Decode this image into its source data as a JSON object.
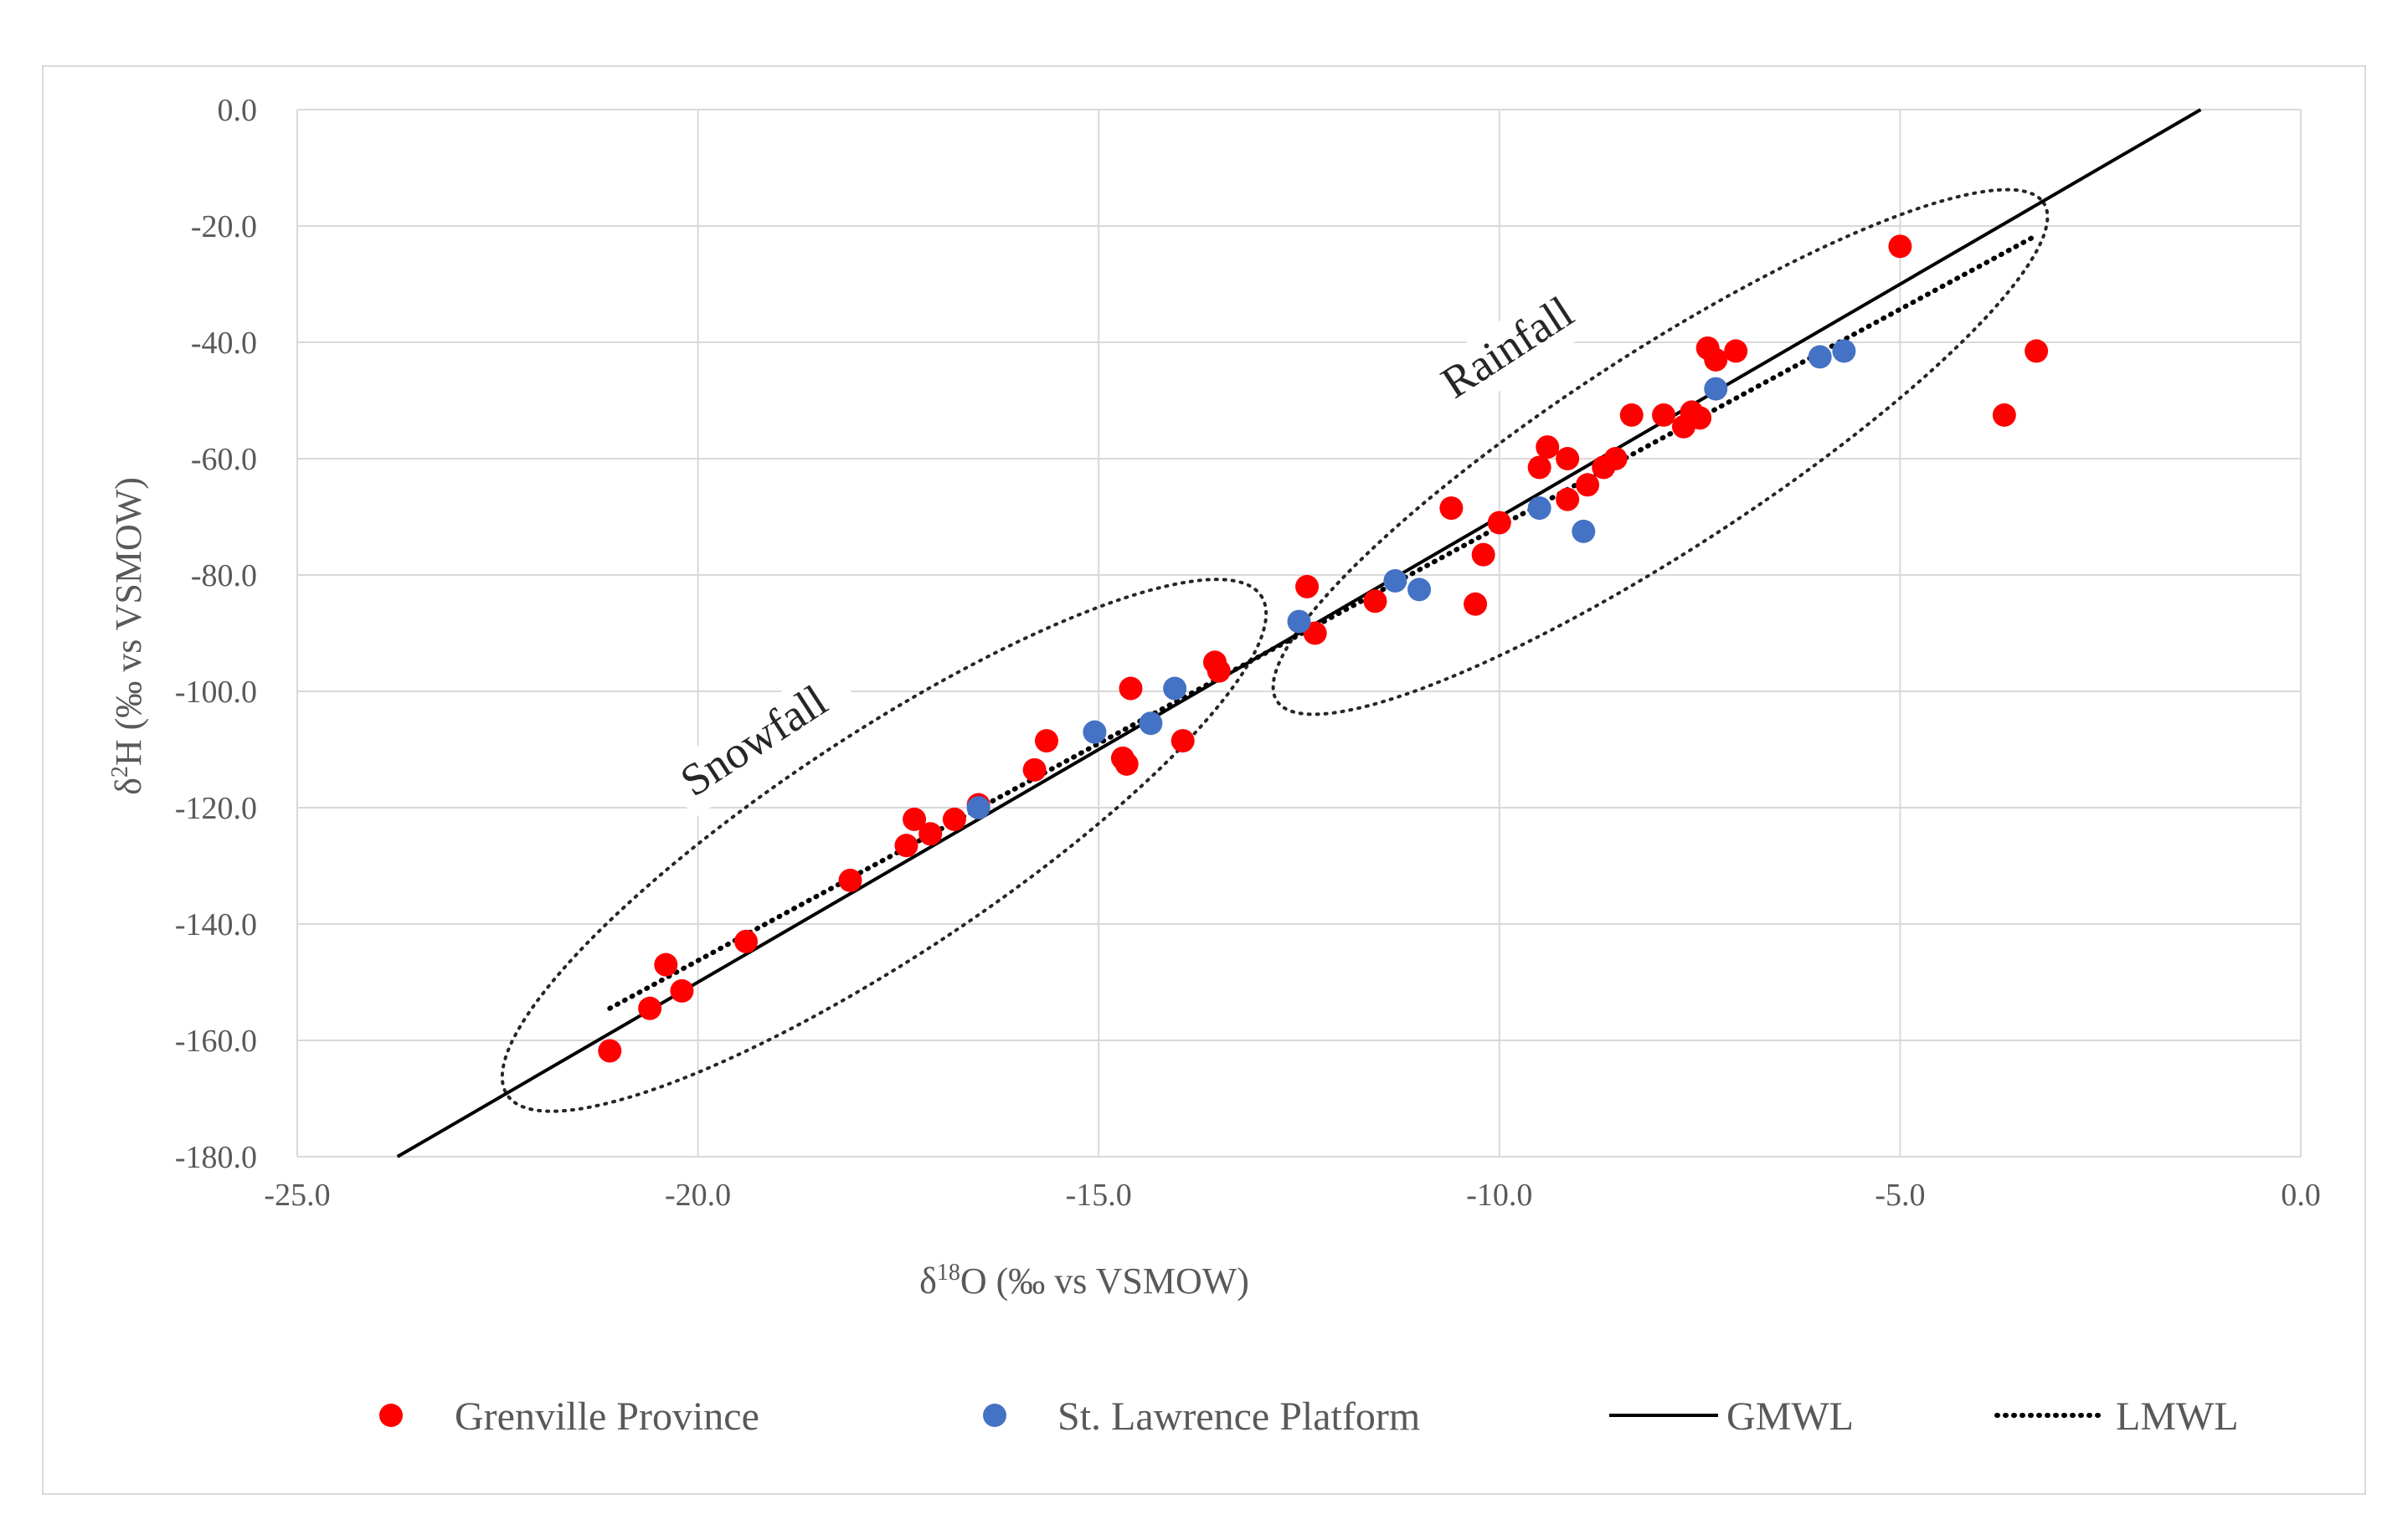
{
  "chart_data": {
    "type": "scatter",
    "xlabel": {
      "prefix": "δ",
      "sup": "18",
      "main": "O (‰ vs VSMOW)"
    },
    "ylabel": {
      "prefix": "δ",
      "sup": "2",
      "main": "H (‰ vs VSMOW)"
    },
    "xlim": [
      -25,
      0
    ],
    "ylim": [
      -180,
      0
    ],
    "x_ticks": [
      -25,
      -20,
      -15,
      -10,
      -5,
      0
    ],
    "y_ticks": [
      0,
      -20,
      -40,
      -60,
      -80,
      -100,
      -120,
      -140,
      -160,
      -180
    ],
    "x_tick_labels": [
      "-25.0",
      "-20.0",
      "-15.0",
      "-10.0",
      "-5.0",
      "0.0"
    ],
    "y_tick_labels": [
      "0.0",
      "-20.0",
      "-40.0",
      "-60.0",
      "-80.0",
      "-100.0",
      "-120.0",
      "-140.0",
      "-160.0",
      "-180.0"
    ],
    "grid": true,
    "legend_position": "bottom",
    "series": [
      {
        "name": "Grenville Province",
        "kind": "points",
        "color": "#ff0000",
        "points": [
          [
            -21.1,
            -161.8
          ],
          [
            -20.6,
            -154.5
          ],
          [
            -20.4,
            -147
          ],
          [
            -20.2,
            -151.5
          ],
          [
            -19.4,
            -143
          ],
          [
            -18.1,
            -132.5
          ],
          [
            -17.4,
            -126.5
          ],
          [
            -17.3,
            -122
          ],
          [
            -17.1,
            -124.5
          ],
          [
            -16.8,
            -122
          ],
          [
            -16.5,
            -119.5
          ],
          [
            -15.8,
            -113.5
          ],
          [
            -15.65,
            -108.5
          ],
          [
            -14.7,
            -111.5
          ],
          [
            -14.65,
            -112.5
          ],
          [
            -14.6,
            -99.5
          ],
          [
            -13.95,
            -108.5
          ],
          [
            -13.55,
            -95
          ],
          [
            -13.5,
            -96.5
          ],
          [
            -12.4,
            -82
          ],
          [
            -12.3,
            -90
          ],
          [
            -11.55,
            -84.5
          ],
          [
            -10.6,
            -68.5
          ],
          [
            -10.3,
            -85
          ],
          [
            -10.2,
            -76.5
          ],
          [
            -10.0,
            -71
          ],
          [
            -9.5,
            -61.5
          ],
          [
            -9.4,
            -58
          ],
          [
            -9.15,
            -60
          ],
          [
            -9.15,
            -67
          ],
          [
            -8.9,
            -64.5
          ],
          [
            -8.7,
            -61.5
          ],
          [
            -8.55,
            -60
          ],
          [
            -8.35,
            -52.5
          ],
          [
            -7.95,
            -52.5
          ],
          [
            -7.7,
            -54.5
          ],
          [
            -7.6,
            -52
          ],
          [
            -7.5,
            -53
          ],
          [
            -7.4,
            -41
          ],
          [
            -7.3,
            -43
          ],
          [
            -7.05,
            -41.5
          ],
          [
            -5.0,
            -23.5
          ],
          [
            -3.7,
            -52.5
          ],
          [
            -3.3,
            -41.5
          ]
        ]
      },
      {
        "name": "St. Lawrence Platform",
        "kind": "points",
        "color": "#4472c4",
        "points": [
          [
            -16.5,
            -120
          ],
          [
            -15.05,
            -107
          ],
          [
            -14.35,
            -105.5
          ],
          [
            -14.05,
            -99.5
          ],
          [
            -12.5,
            -88
          ],
          [
            -11.3,
            -81
          ],
          [
            -11.0,
            -82.5
          ],
          [
            -9.5,
            -68.5
          ],
          [
            -8.95,
            -72.5
          ],
          [
            -7.3,
            -48
          ],
          [
            -6.0,
            -42.5
          ],
          [
            -5.7,
            -41.5
          ]
        ]
      },
      {
        "name": "GMWL",
        "kind": "line",
        "style": "solid",
        "color": "#000000",
        "x": [
          -23.75,
          -1.25
        ],
        "y": [
          -180,
          0
        ]
      },
      {
        "name": "LMWL",
        "kind": "line",
        "style": "dotted",
        "color": "#000000",
        "x": [
          -21.1,
          -3.35
        ],
        "y": [
          -154.5,
          -22
        ]
      }
    ],
    "annotations": [
      {
        "text": "Rainfall"
      },
      {
        "text": "Snowfall"
      }
    ]
  }
}
